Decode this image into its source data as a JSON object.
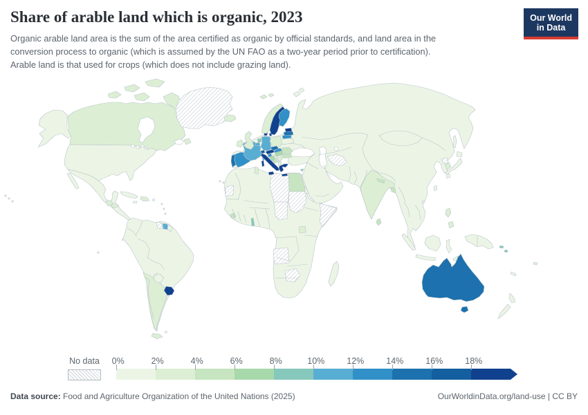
{
  "header": {
    "title": "Share of arable land which is organic, 2023",
    "subtitle_lines": [
      "Organic arable land area is the sum of the area certified as organic by official standards, and land area in the",
      "conversion process to organic (which is assumed by the UN FAO as a two-year period prior to certification).",
      "Arable land is that used for crops (which does not include grazing land)."
    ]
  },
  "logo": {
    "line1": "Our World",
    "line2": "in Data",
    "bg_color": "#1d3860",
    "accent_color": "#d73c34"
  },
  "footer": {
    "source_label": "Data source:",
    "source_text": " Food and Agriculture Organization of the United Nations (2025)",
    "right_text": "OurWorldinData.org/land-use | CC BY"
  },
  "chart_data": {
    "type": "choropleth-map",
    "title": "Share of arable land which is organic, 2023",
    "unit": "%",
    "legend": {
      "no_data_label": "No data",
      "tick_labels": [
        "0%",
        "2%",
        "4%",
        "6%",
        "8%",
        "10%",
        "12%",
        "14%",
        "16%",
        "18%"
      ],
      "bin_ranges": [
        "0-2%",
        "2-4%",
        "4-6%",
        "6-8%",
        "8-10%",
        "10-12%",
        "12-14%",
        "14-16%",
        "16-18%",
        "18%+"
      ],
      "bin_colors": [
        "#ecf5e5",
        "#dcefd4",
        "#c7e5c0",
        "#a8d9ab",
        "#86c8bb",
        "#58add2",
        "#3090c7",
        "#1c71ae",
        "#135f9f",
        "#10418e"
      ],
      "no_data_pattern": "gray-diagonal-hatch"
    },
    "entities": {
      "united_states": 0,
      "canada": 1,
      "mexico": 0,
      "guatemala": 1,
      "honduras": 1,
      "cuba": 0,
      "dominican_republic": 1,
      "jamaica": 0,
      "greenland": "no_data",
      "iceland": 1,
      "svalbard": 1,
      "brazil": 0,
      "argentina": 1,
      "chile": 1,
      "uruguay": 9,
      "paraguay": 0,
      "peru": 0,
      "bolivia": 0,
      "ecuador": 0,
      "colombia": 0,
      "venezuela": 0,
      "guyana": "no_data",
      "suriname": 5,
      "french_guiana": 0,
      "tierra_del_fuego": 1,
      "norway": 1,
      "sweden": 9,
      "finland": 6,
      "denmark": 9,
      "estonia": 9,
      "latvia": 7,
      "lithuania": 6,
      "united_kingdom": 1,
      "ireland": 1,
      "france": 5,
      "corsica": 5,
      "spain": 6,
      "portugal": 7,
      "italy": 9,
      "sicily": 9,
      "sardinia": 9,
      "germany": 5,
      "netherlands": 4,
      "belgium": 5,
      "switzerland": 8,
      "austria": 9,
      "czechia": 7,
      "slovakia": 6,
      "poland": 1,
      "hungary": 3,
      "slovenia": 6,
      "croatia": 3,
      "bosnia": 2,
      "serbia": 1,
      "romania": 2,
      "bulgaria": 2,
      "albania": 1,
      "greece": 9,
      "crete": 9,
      "cyprus": 4,
      "ukraine": 0,
      "belarus": 0,
      "russia": 0,
      "turkey": 0,
      "kazakhstan": 0,
      "turkmenistan": "no_data",
      "iran": 0,
      "iraq": 0,
      "saudi_arabia": 0,
      "yemen": "no_data",
      "afghanistan": 0,
      "pakistan": 0,
      "india": 1,
      "nepal": 2,
      "bangladesh": 2,
      "sri_lanka": 2,
      "china": 0,
      "mongolia": 0,
      "north_korea": "no_data",
      "south_korea": 1,
      "japan": 0,
      "taiwan": 0,
      "philippines": 1,
      "vietnam": 0,
      "thailand": 0,
      "myanmar": 0,
      "indonesia": 0,
      "timor_leste": 4,
      "papua_new_guinea": 0,
      "australia": 7,
      "new_zealand": 0,
      "solomon_islands": 4,
      "fiji": 1,
      "new_caledonia": 0,
      "morocco": 0,
      "algeria": 0,
      "tunisia": 1,
      "libya": "no_data",
      "western_sahara": "no_data",
      "egypt": 2,
      "sudan": "no_data",
      "chad": "no_data",
      "eritrea": "no_data",
      "somalia": "no_data",
      "ethiopia": 0,
      "kenya": 0,
      "uganda": 1,
      "togo": 4,
      "ghana": 0,
      "sierra_leone": 2,
      "nigeria": 0,
      "angola": "no_data",
      "botswana": "no_data",
      "zimbabwe": "no_data",
      "south_africa": 0,
      "madagascar": 0,
      "hawaii": 0
    }
  }
}
